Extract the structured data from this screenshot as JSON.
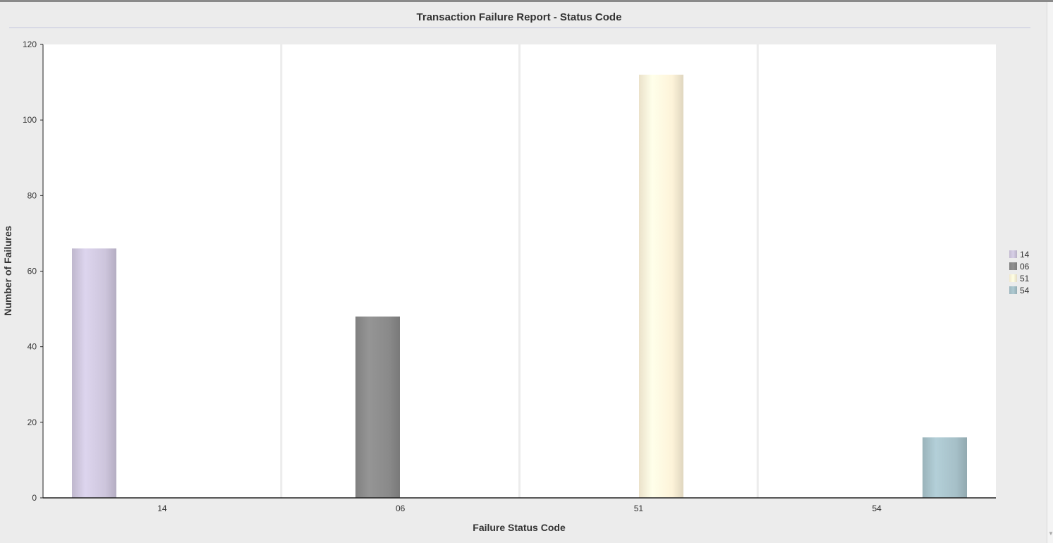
{
  "chart_data": {
    "type": "bar",
    "title": "Transaction Failure Report - Status Code",
    "xlabel": "Failure Status Code",
    "ylabel": "Number of Failures",
    "ylim": [
      0,
      120
    ],
    "yticks": [
      0,
      20,
      40,
      60,
      80,
      100,
      120
    ],
    "categories": [
      "14",
      "06",
      "51",
      "54"
    ],
    "series": [
      {
        "name": "14",
        "values": [
          66,
          0,
          0,
          0
        ],
        "color": "#cdc5dc"
      },
      {
        "name": "06",
        "values": [
          0,
          48,
          0,
          0
        ],
        "color": "#8a8a8a"
      },
      {
        "name": "51",
        "values": [
          0,
          0,
          112,
          0
        ],
        "color": "#fdf3d9"
      },
      {
        "name": "54",
        "values": [
          0,
          0,
          0,
          16
        ],
        "color": "#a6c0c8"
      }
    ],
    "legend_position": "right",
    "grid": "vertical"
  }
}
